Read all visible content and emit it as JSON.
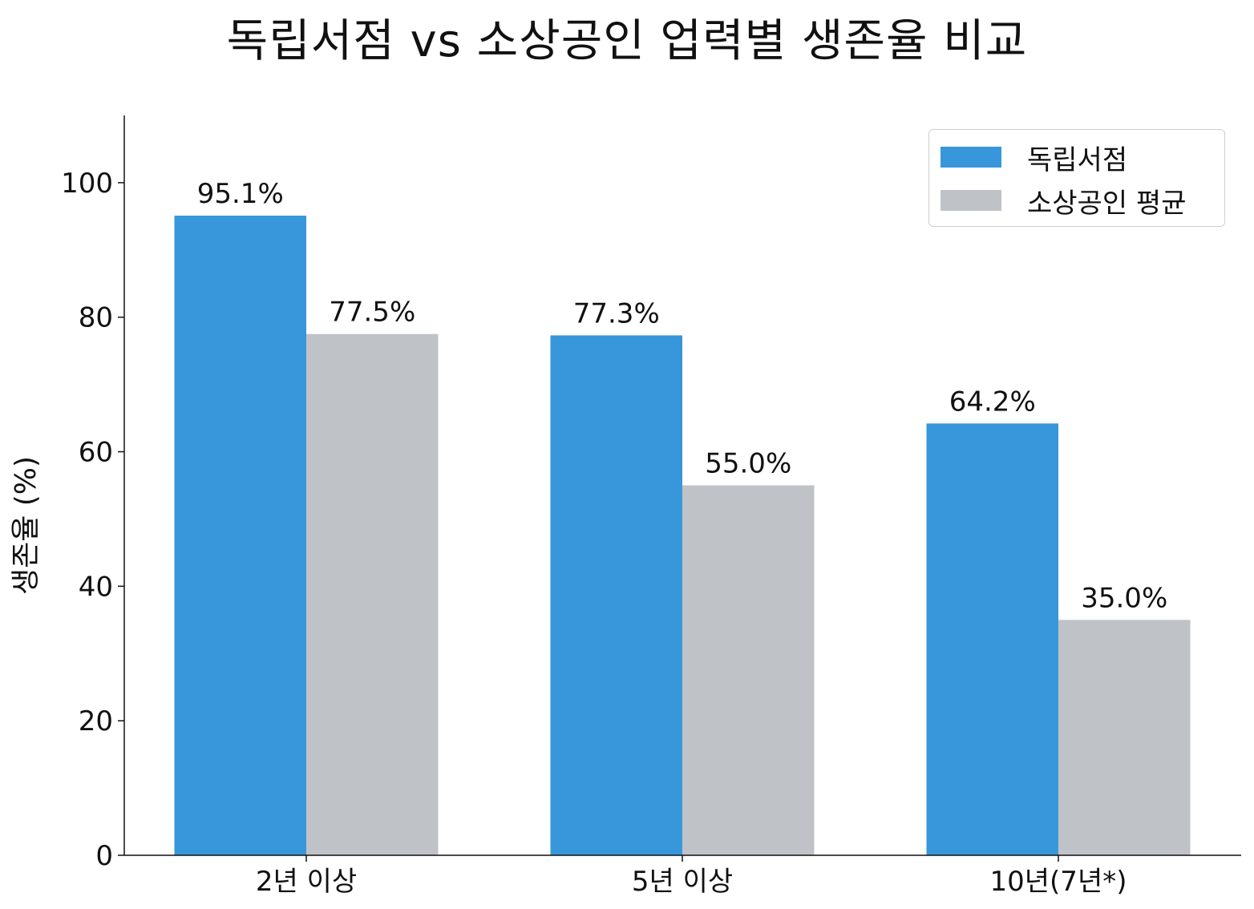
{
  "chart_data": {
    "type": "bar",
    "title": "독립서점 vs 소상공인 업력별 생존율 비교",
    "xlabel": "",
    "ylabel": "생존율 (%)",
    "categories": [
      "2년 이상",
      "5년 이상",
      "10년(7년*)"
    ],
    "series": [
      {
        "name": "독립서점",
        "color": "#3797da",
        "values": [
          95.1,
          77.3,
          64.2
        ],
        "labels": [
          "95.1%",
          "77.3%",
          "64.2%"
        ]
      },
      {
        "name": "소상공인 평균",
        "color": "#bfc3c7",
        "values": [
          77.5,
          55.0,
          35.0
        ],
        "labels": [
          "77.5%",
          "55.0%",
          "35.0%"
        ]
      }
    ],
    "ylim": [
      0,
      110
    ],
    "yticks": [
      0,
      20,
      40,
      60,
      80,
      100
    ],
    "grid": false,
    "legend_position": "top-right"
  }
}
